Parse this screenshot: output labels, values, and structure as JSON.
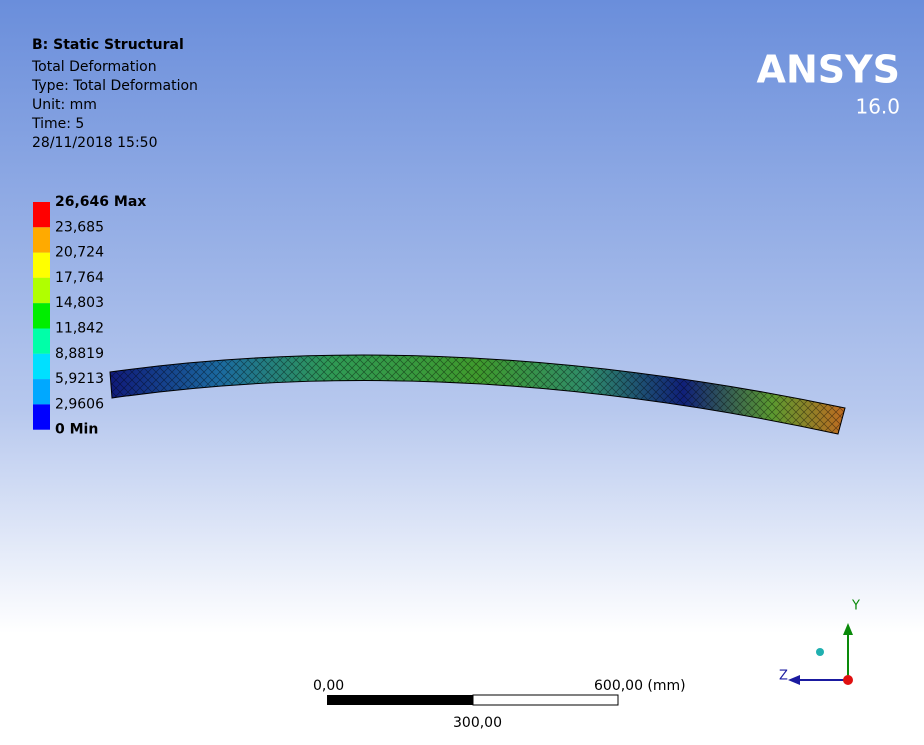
{
  "header": {
    "title": "B: Static Structural",
    "lines": [
      "Total Deformation",
      "Type: Total Deformation",
      "Unit: mm",
      "Time: 5",
      "28/11/2018 15:50"
    ]
  },
  "logo": {
    "name": "ANSYS",
    "version": "16.0"
  },
  "legend": {
    "labels": [
      "26,646 Max",
      "23,685",
      "20,724",
      "17,764",
      "14,803",
      "11,842",
      "8,8819",
      "5,9213",
      "2,9606",
      "0 Min"
    ]
  },
  "scale_bar": {
    "start": "0,00",
    "end": "600,00 (mm)",
    "middle": "300,00"
  },
  "triad": {
    "y": "Y",
    "z": "Z"
  }
}
